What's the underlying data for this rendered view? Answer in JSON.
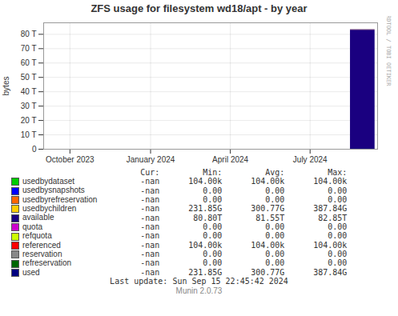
{
  "chart_data": {
    "type": "bar",
    "title": "ZFS usage for filesystem wd18/apt - by year",
    "ylabel": "bytes",
    "x": [
      1724976000
    ],
    "series": [
      {
        "name": "available",
        "color": "#1a0080",
        "values": [
          82.85
        ]
      },
      {
        "color": "#440044",
        "values": [
          0.35
        ]
      },
      {
        "color": "#008080",
        "values": [
          0.05
        ],
        "stacked": false
      }
    ],
    "stacked": true,
    "xlim": [
      1693526400,
      1726444800
    ],
    "xticks": [
      {
        "value": 1696118400,
        "label": "October 2023"
      },
      {
        "value": 1704067200,
        "label": "January 2024"
      },
      {
        "value": 1711929600,
        "label": "April 2024"
      },
      {
        "value": 1719792000,
        "label": "July 2024"
      }
    ],
    "ylim": [
      0,
      88
    ],
    "yticks": [
      0,
      {
        "value": 10,
        "label": "10 T"
      },
      {
        "value": 20,
        "label": "20 T"
      },
      {
        "value": 30,
        "label": "30 T"
      },
      {
        "value": 40,
        "label": "40 T"
      },
      {
        "value": 50,
        "label": "50 T"
      },
      {
        "value": 60,
        "label": "60 T"
      },
      {
        "value": 70,
        "label": "70 T"
      },
      {
        "value": 80,
        "label": "80 T"
      }
    ],
    "grid": true,
    "table": {
      "headers": [
        "Cur:",
        "Min:",
        "Avg:",
        "Max:"
      ],
      "rows": [
        {
          "label": "usedbydataset",
          "color": "#00cc00",
          "values": [
            "-nan",
            "104.00k",
            "104.00k",
            "104.00k"
          ]
        },
        {
          "label": "usedbysnapshots",
          "color": "#0000ff",
          "values": [
            "-nan",
            "0.00",
            "0.00",
            "0.00"
          ]
        },
        {
          "label": "usedbyrefreservation",
          "color": "#ff6600",
          "values": [
            "-nan",
            "0.00",
            "0.00",
            "0.00"
          ]
        },
        {
          "label": "usedbychildren",
          "color": "#ffcc00",
          "values": [
            "-nan",
            "231.85G",
            "300.77G",
            "387.84G"
          ]
        },
        {
          "label": "available",
          "color": "#1a0080",
          "values": [
            "-nan",
            "80.80T",
            "81.55T",
            "82.85T"
          ]
        },
        {
          "label": "quota",
          "color": "#cc00cc",
          "values": [
            "-nan",
            "0.00",
            "0.00",
            "0.00"
          ]
        },
        {
          "label": "refquota",
          "color": "#ccff00",
          "values": [
            "-nan",
            "0.00",
            "0.00",
            "0.00"
          ]
        },
        {
          "label": "referenced",
          "color": "#ff0000",
          "values": [
            "-nan",
            "104.00k",
            "104.00k",
            "104.00k"
          ]
        },
        {
          "label": "reservation",
          "color": "#888888",
          "values": [
            "-nan",
            "0.00",
            "0.00",
            "0.00"
          ]
        },
        {
          "label": "refreservation",
          "color": "#006600",
          "values": [
            "-nan",
            "0.00",
            "0.00",
            "0.00"
          ]
        },
        {
          "label": "used",
          "color": "#000080",
          "values": [
            "-nan",
            "231.85G",
            "300.77G",
            "387.84G"
          ]
        }
      ]
    },
    "annotations": [
      "RRDTOOL / TOBI OETIKER",
      "Last update: Sun Sep 15 22:45:42 2024",
      "Munin 2.0.73"
    ]
  }
}
